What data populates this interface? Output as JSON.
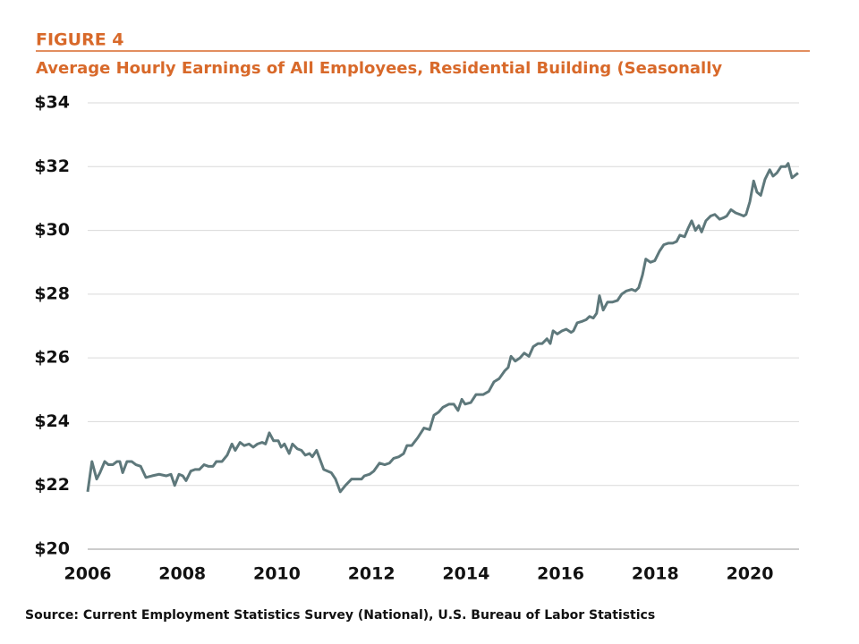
{
  "chart_data": {
    "type": "line",
    "label": "FIGURE 4",
    "title": "Average Hourly Earnings of All Employees, Residential Building (Seasonally",
    "source": "Source: Current Employment Statistics Survey (National), U.S. Bureau of Labor Statistics",
    "color": "#5e787b",
    "x": [
      2006.0,
      2006.09,
      2006.19,
      2006.26,
      2006.36,
      2006.44,
      2006.53,
      2006.62,
      2006.68,
      2006.74,
      2006.83,
      2006.93,
      2007.02,
      2007.12,
      2007.23,
      2007.36,
      2007.51,
      2007.66,
      2007.76,
      2007.84,
      2007.93,
      2008.01,
      2008.08,
      2008.18,
      2008.27,
      2008.36,
      2008.46,
      2008.55,
      2008.65,
      2008.72,
      2008.84,
      2008.95,
      2009.05,
      2009.12,
      2009.22,
      2009.31,
      2009.41,
      2009.5,
      2009.59,
      2009.69,
      2009.76,
      2009.84,
      2009.93,
      2010.03,
      2010.09,
      2010.16,
      2010.26,
      2010.33,
      2010.43,
      2010.52,
      2010.6,
      2010.69,
      2010.75,
      2010.84,
      2010.99,
      2011.15,
      2011.24,
      2011.34,
      2011.45,
      2011.58,
      2011.71,
      2011.79,
      2011.85,
      2011.96,
      2012.05,
      2012.17,
      2012.28,
      2012.38,
      2012.47,
      2012.58,
      2012.68,
      2012.75,
      2012.85,
      2012.98,
      2013.11,
      2013.23,
      2013.32,
      2013.42,
      2013.51,
      2013.64,
      2013.74,
      2013.83,
      2013.91,
      2013.98,
      2014.1,
      2014.21,
      2014.36,
      2014.48,
      2014.59,
      2014.7,
      2014.82,
      2014.89,
      2014.95,
      2015.04,
      2015.14,
      2015.23,
      2015.33,
      2015.42,
      2015.52,
      2015.61,
      2015.71,
      2015.78,
      2015.84,
      2015.93,
      2016.03,
      2016.12,
      2016.22,
      2016.27,
      2016.35,
      2016.46,
      2016.54,
      2016.61,
      2016.69,
      2016.76,
      2016.82,
      2016.9,
      2016.99,
      2017.09,
      2017.2,
      2017.29,
      2017.39,
      2017.5,
      2017.58,
      2017.65,
      2017.73,
      2017.8,
      2017.9,
      2017.99,
      2018.09,
      2018.18,
      2018.28,
      2018.37,
      2018.45,
      2018.52,
      2018.62,
      2018.69,
      2018.77,
      2018.85,
      2018.92,
      2018.98,
      2019.07,
      2019.17,
      2019.26,
      2019.36,
      2019.45,
      2019.51,
      2019.6,
      2019.7,
      2019.79,
      2019.87,
      2019.92,
      2020.0,
      2020.08,
      2020.15,
      2020.23,
      2020.32,
      2020.42,
      2020.49,
      2020.57,
      2020.66,
      2020.76,
      2020.81,
      2020.89,
      2021.02
    ],
    "values": [
      21.8,
      22.75,
      22.2,
      22.4,
      22.75,
      22.65,
      22.65,
      22.75,
      22.75,
      22.4,
      22.75,
      22.75,
      22.65,
      22.6,
      22.25,
      22.3,
      22.35,
      22.3,
      22.35,
      22.0,
      22.35,
      22.3,
      22.15,
      22.45,
      22.5,
      22.5,
      22.65,
      22.6,
      22.6,
      22.75,
      22.75,
      22.95,
      23.3,
      23.1,
      23.35,
      23.25,
      23.3,
      23.2,
      23.3,
      23.35,
      23.3,
      23.65,
      23.4,
      23.4,
      23.2,
      23.3,
      23.0,
      23.3,
      23.15,
      23.1,
      22.95,
      23.0,
      22.9,
      23.1,
      22.5,
      22.4,
      22.2,
      21.8,
      22.0,
      22.2,
      22.2,
      22.2,
      22.3,
      22.35,
      22.45,
      22.7,
      22.65,
      22.7,
      22.85,
      22.9,
      23.0,
      23.25,
      23.25,
      23.5,
      23.8,
      23.75,
      24.2,
      24.3,
      24.45,
      24.55,
      24.55,
      24.35,
      24.7,
      24.55,
      24.6,
      24.85,
      24.85,
      24.95,
      25.25,
      25.35,
      25.6,
      25.7,
      26.05,
      25.9,
      26.0,
      26.15,
      26.05,
      26.35,
      26.45,
      26.45,
      26.6,
      26.45,
      26.85,
      26.75,
      26.85,
      26.9,
      26.8,
      26.85,
      27.1,
      27.15,
      27.2,
      27.3,
      27.25,
      27.4,
      27.95,
      27.5,
      27.75,
      27.75,
      27.8,
      28.0,
      28.1,
      28.15,
      28.1,
      28.2,
      28.6,
      29.1,
      29.0,
      29.05,
      29.35,
      29.55,
      29.6,
      29.6,
      29.65,
      29.85,
      29.8,
      30.05,
      30.3,
      30.0,
      30.15,
      29.95,
      30.3,
      30.45,
      30.5,
      30.35,
      30.4,
      30.45,
      30.65,
      30.55,
      30.5,
      30.45,
      30.5,
      30.9,
      31.55,
      31.2,
      31.1,
      31.6,
      31.9,
      31.7,
      31.8,
      32.0,
      32.0,
      32.1,
      31.65,
      31.8
    ],
    "xlim": [
      2006,
      2021.04
    ],
    "xticks": [
      2006,
      2008,
      2010,
      2012,
      2014,
      2016,
      2018,
      2020
    ],
    "ylim": [
      20,
      34
    ],
    "yticks": [
      {
        "value": 20,
        "label": "$20"
      },
      {
        "value": 22,
        "label": "$22"
      },
      {
        "value": 24,
        "label": "$24"
      },
      {
        "value": 26,
        "label": "$26"
      },
      {
        "value": 28,
        "label": "$28"
      },
      {
        "value": 30,
        "label": "$30"
      },
      {
        "value": 32,
        "label": "$32"
      },
      {
        "value": 34,
        "label": "$34"
      }
    ],
    "grid": true
  }
}
